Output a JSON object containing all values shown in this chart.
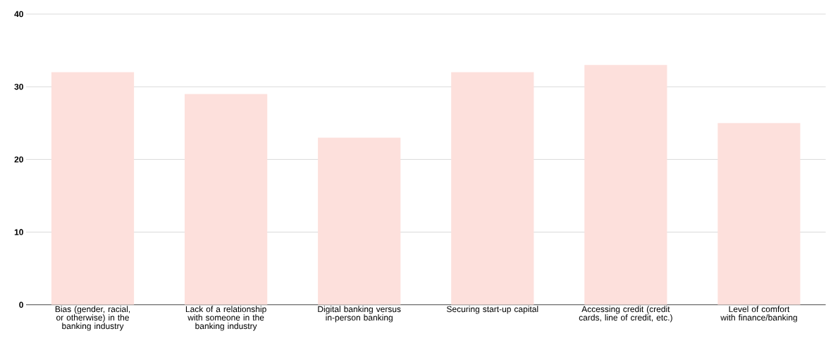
{
  "chart_data": {
    "type": "bar",
    "categories": [
      "Bias (gender, racial, or otherwise) in the banking industry",
      "Lack of a relationship with someone in the banking industry",
      "Digital banking versus in-person banking",
      "Securing start-up capital",
      "Accessing credit (credit cards, line of credit, etc.)",
      "Level of comfort with finance/banking"
    ],
    "values": [
      32,
      29,
      23,
      32,
      33,
      25
    ],
    "color": "#fde0dc",
    "ylim": [
      0,
      40
    ],
    "yticks": [
      0,
      10,
      20,
      30,
      40
    ],
    "grid": "y"
  }
}
